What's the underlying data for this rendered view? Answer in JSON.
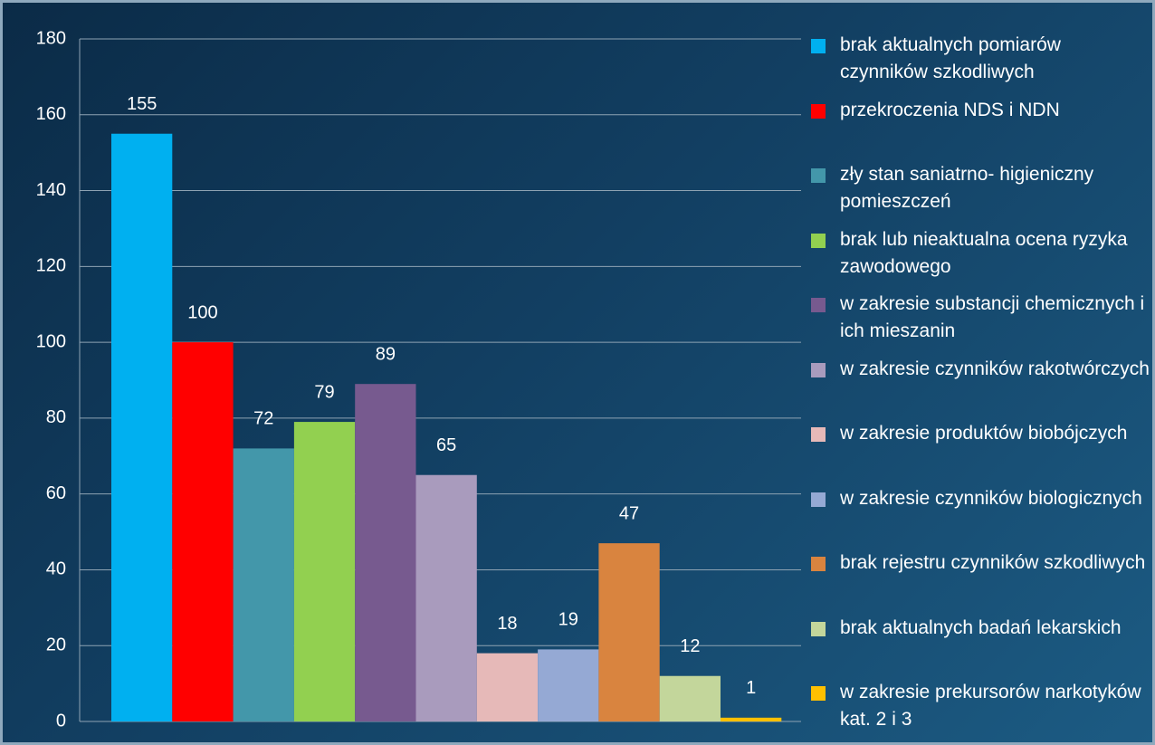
{
  "chart_data": {
    "type": "bar",
    "series": [
      {
        "name": "brak aktualnych pomiarów czynników szkodliwych",
        "color": "#00b0f0",
        "values": [
          155
        ]
      },
      {
        "name": "przekroczenia NDS i NDN",
        "color": "#ff0000",
        "values": [
          100
        ]
      },
      {
        "name": "zły stan saniatrno- higieniczny pomieszczeń",
        "color": "#4397aa",
        "values": [
          72
        ]
      },
      {
        "name": "brak lub nieaktualna ocena ryzyka zawodowego",
        "color": "#92d050",
        "values": [
          79
        ]
      },
      {
        "name": "w zakresie substancji chemicznych i ich mieszanin",
        "color": "#775a8f",
        "values": [
          89
        ]
      },
      {
        "name": "w zakresie czynników rakotwórczych",
        "color": "#a99bbd",
        "values": [
          65
        ]
      },
      {
        "name": "w zakresie produktów biobójczych",
        "color": "#e6b9b8",
        "values": [
          18
        ]
      },
      {
        "name": "w zakresie czynników biologicznych",
        "color": "#95a9d4",
        "values": [
          19
        ]
      },
      {
        "name": "brak rejestru czynników szkodliwych",
        "color": "#d9843f",
        "values": [
          47
        ]
      },
      {
        "name": "brak aktualnych badań lekarskich",
        "color": "#c3d69b",
        "values": [
          12
        ]
      },
      {
        "name": "w zakresie prekursorów narkotyków kat. 2 i 3",
        "color": "#ffc000",
        "values": [
          1
        ]
      }
    ],
    "ylim": [
      0,
      180
    ],
    "yticks": [
      0,
      20,
      40,
      60,
      80,
      100,
      120,
      140,
      160,
      180
    ],
    "grid": true
  }
}
